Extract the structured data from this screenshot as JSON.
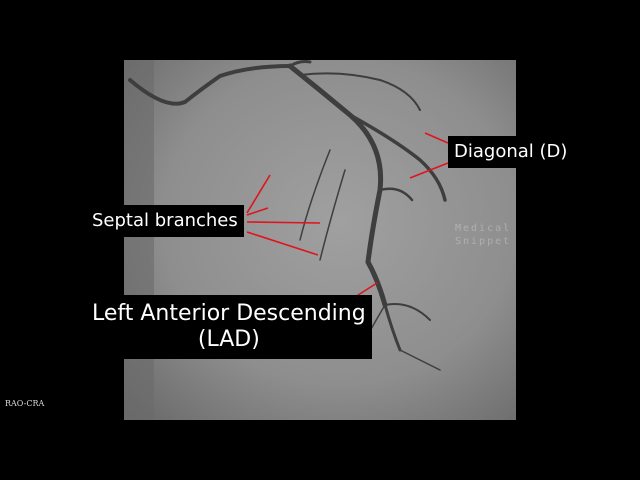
{
  "labels": {
    "diagonal": "Diagonal (D)",
    "septal": "Septal branches",
    "lad": [
      "Left Anterior Descending",
      "(LAD)"
    ]
  },
  "corner_label": "RAO-CRA",
  "watermark": [
    "Medical",
    "Snippet"
  ]
}
